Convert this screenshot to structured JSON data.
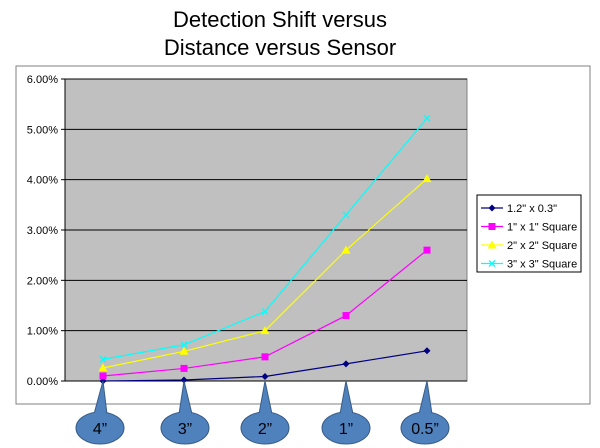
{
  "chart_data": {
    "type": "line",
    "title_lines": [
      "Detection Shift versus",
      "Distance versus Sensor"
    ],
    "categories": [
      "4”",
      "3”",
      "2”",
      "1”",
      "0.5”"
    ],
    "ylim": [
      0,
      6
    ],
    "yticks": [
      "0.00%",
      "1.00%",
      "2.00%",
      "3.00%",
      "4.00%",
      "5.00%",
      "6.00%"
    ],
    "grid": true,
    "legend": "right",
    "plot_background": "#c0c0c0",
    "series": [
      {
        "name": "1.2\" x 0.3\"",
        "color": "#000080",
        "marker": "diamond",
        "values": [
          0.0,
          0.02,
          0.09,
          0.34,
          0.6
        ]
      },
      {
        "name": "1\" x 1\" Square",
        "color": "#ff00ff",
        "marker": "square",
        "values": [
          0.1,
          0.25,
          0.48,
          1.3,
          2.6
        ]
      },
      {
        "name": "2\" x 2\" Square",
        "color": "#ffff00",
        "marker": "triangle",
        "values": [
          0.26,
          0.59,
          1.0,
          2.6,
          4.02
        ]
      },
      {
        "name": "3\" x 3\" Square",
        "color": "#00ffff",
        "marker": "x",
        "values": [
          0.43,
          0.72,
          1.38,
          3.3,
          5.22
        ]
      }
    ],
    "callout_color": "#4f81bd"
  }
}
